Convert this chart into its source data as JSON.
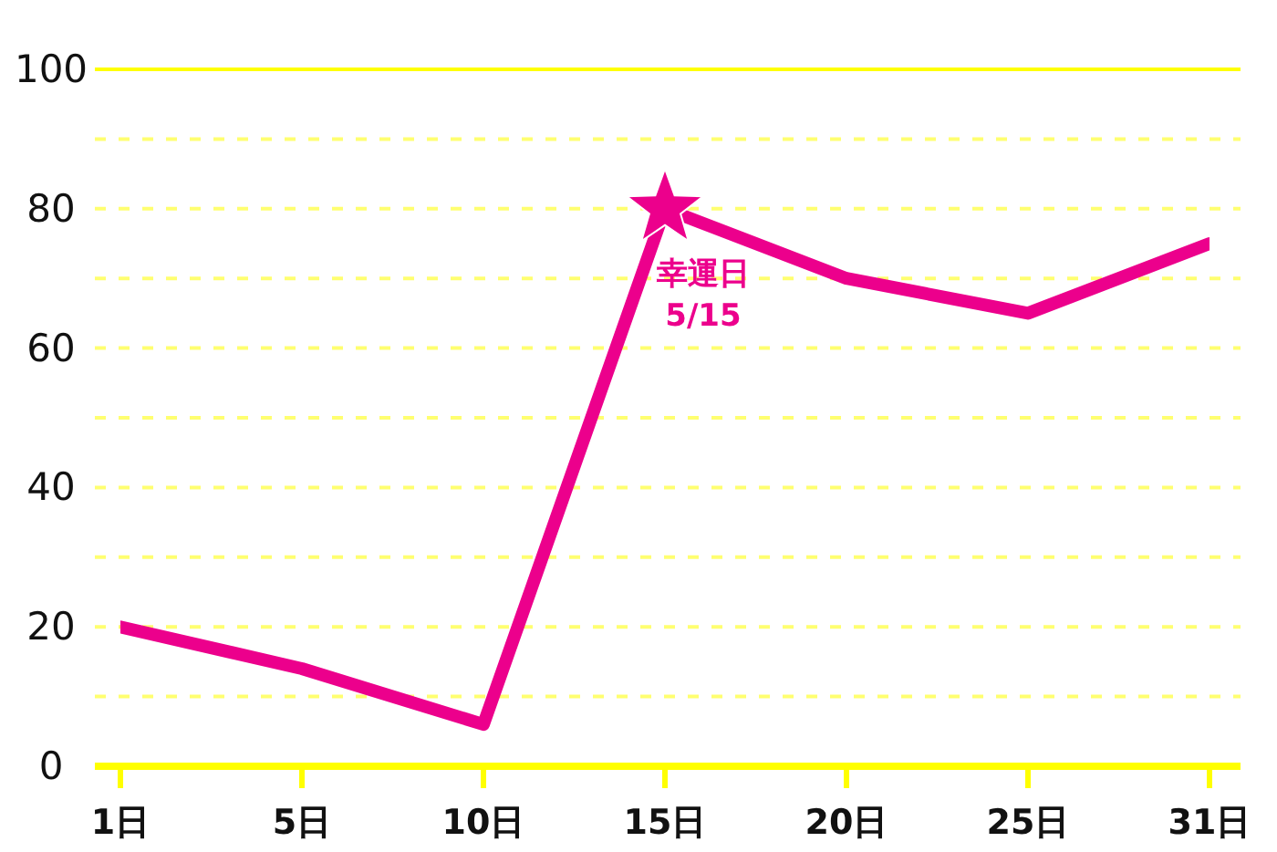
{
  "chart_data": {
    "type": "line",
    "categories": [
      "1日",
      "5日",
      "10日",
      "15日",
      "20日",
      "25日",
      "31日"
    ],
    "series": [
      {
        "color": "#ec008c",
        "values": [
          20,
          14,
          6,
          80,
          70,
          65,
          75
        ]
      },
      {
        "type": "scatter",
        "x": [
          "15日"
        ],
        "values": [
          80
        ],
        "color": "#ec008c",
        "marker": "star"
      }
    ],
    "ylim": [
      0,
      100
    ],
    "yticks": [
      0,
      {
        "value": 10,
        "label": null
      },
      20,
      {
        "value": 30,
        "label": null
      },
      40,
      {
        "value": 50,
        "label": null
      },
      60,
      {
        "value": 70,
        "label": null
      },
      80,
      {
        "value": 90,
        "label": null
      },
      100
    ],
    "grid": "y",
    "line_style": "solid",
    "annotations": [
      {
        "text": "幸運日\n5/15",
        "x": "15日",
        "y": 80
      }
    ]
  }
}
